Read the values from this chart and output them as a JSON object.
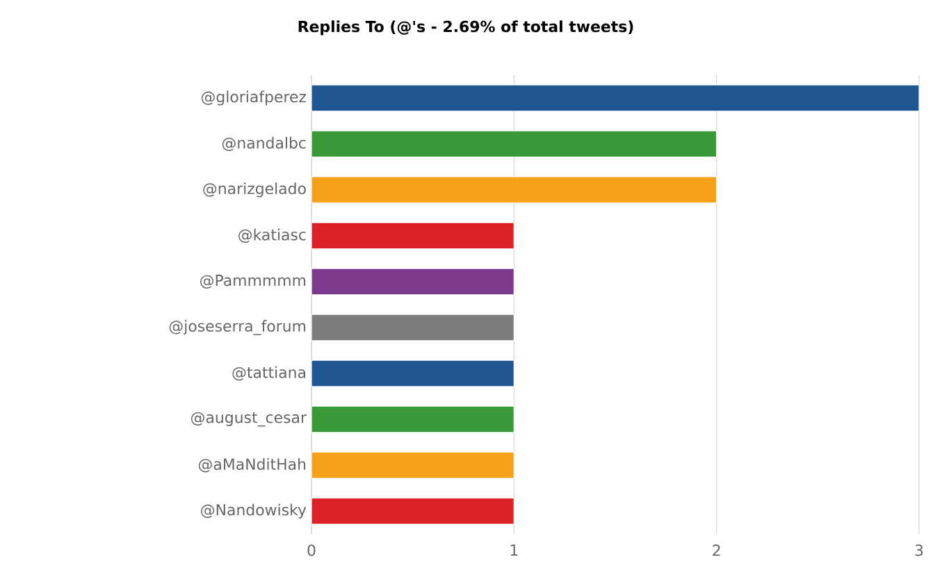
{
  "chart_data": {
    "type": "bar",
    "orientation": "horizontal",
    "title": "Replies To (@'s - 2.69% of total tweets)",
    "categories": [
      "@gloriafperez",
      "@nandalbc",
      "@narizgelado",
      "@katiasc",
      "@Pammmmm",
      "@joseserra_forum",
      "@tattiana",
      "@august_cesar",
      "@aMaNditHah",
      "@Nandowisky"
    ],
    "values": [
      3,
      2,
      2,
      1,
      1,
      1,
      1,
      1,
      1,
      1
    ],
    "colors": [
      "#1f5591",
      "#3a9a3a",
      "#f7a01a",
      "#dc2127",
      "#7b3a8c",
      "#7a7d7b",
      "#1f5591",
      "#3a9a3a",
      "#f7a01a",
      "#dc2127"
    ],
    "xlim": [
      0,
      3
    ],
    "xticks": [
      0,
      1,
      2,
      3
    ],
    "grid": "x"
  }
}
